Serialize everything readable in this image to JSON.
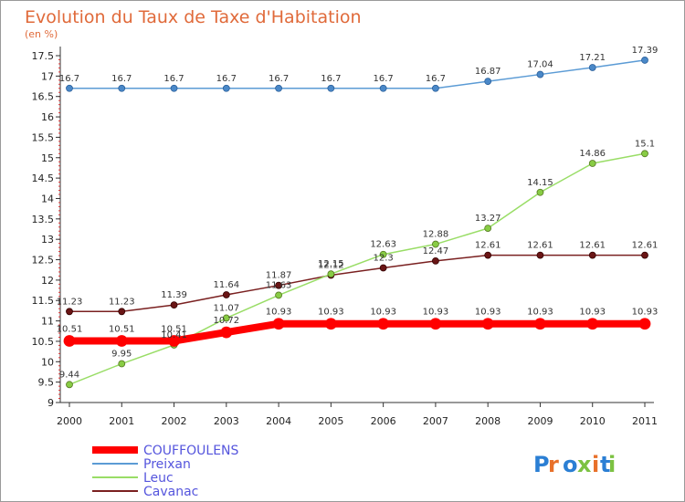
{
  "chart_data": {
    "type": "line",
    "title": "Evolution du Taux de Taxe d'Habitation",
    "subtitle": "(en %)",
    "x": [
      "2000",
      "2001",
      "2002",
      "2003",
      "2004",
      "2005",
      "2006",
      "2007",
      "2008",
      "2009",
      "2010",
      "2011"
    ],
    "ylim": [
      9,
      17.5
    ],
    "ytick_step": 0.5,
    "grid": false,
    "legend_position": "bottom-left",
    "series": [
      {
        "name": "COUFFOULENS",
        "color": "#ff0000",
        "values": [
          10.51,
          10.51,
          10.51,
          10.72,
          10.93,
          10.93,
          10.93,
          10.93,
          10.93,
          10.93,
          10.93,
          10.93
        ]
      },
      {
        "name": "Preixan",
        "color": "#5b9bd5",
        "values": [
          16.7,
          16.7,
          16.7,
          16.7,
          16.7,
          16.7,
          16.7,
          16.7,
          16.87,
          17.04,
          17.21,
          17.39
        ]
      },
      {
        "name": "Leuc",
        "color": "#99dd66",
        "values": [
          9.44,
          9.95,
          10.41,
          11.07,
          11.63,
          12.15,
          12.63,
          12.88,
          13.27,
          14.15,
          14.86,
          15.1
        ]
      },
      {
        "name": "Cavanac",
        "color": "#7a2020",
        "values": [
          11.23,
          11.23,
          11.39,
          11.64,
          11.87,
          12.12,
          12.3,
          12.47,
          12.61,
          12.61,
          12.61,
          12.61
        ]
      }
    ]
  },
  "logo": {
    "text": "Proxiti"
  }
}
